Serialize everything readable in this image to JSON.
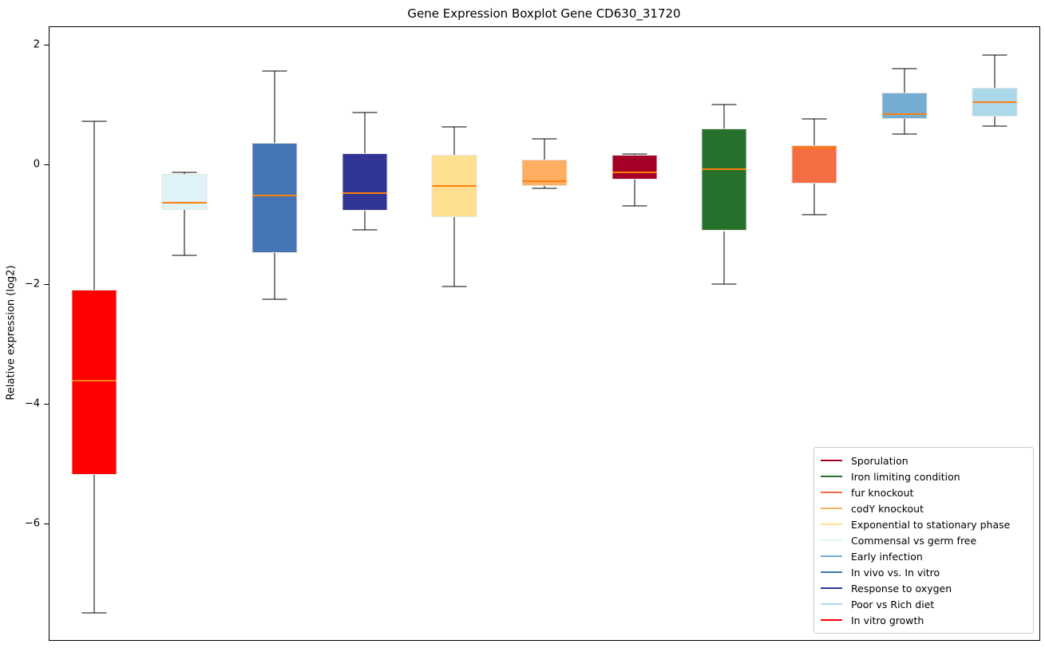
{
  "figure": {
    "title": "Gene Expression Boxplot Gene CD630_31720",
    "ylabel": "Relative expression (log2)"
  },
  "axes": {
    "yticks": [
      {
        "label": "2",
        "value": 2
      },
      {
        "label": "0",
        "value": 0
      },
      {
        "label": "−2",
        "value": -2
      },
      {
        "label": "−4",
        "value": -4
      },
      {
        "label": "−6",
        "value": -6
      }
    ]
  },
  "chart_data": {
    "type": "boxplot",
    "title": "Gene Expression Boxplot Gene CD630_31720",
    "xlabel": "",
    "ylabel": "Relative expression (log2)",
    "ylim": [
      -7.95,
      2.3
    ],
    "grid": false,
    "median_color": "#ff7f0e",
    "whisker_color": "#000000",
    "categories": [
      "In vitro growth",
      "Commensal vs germ free",
      "In vivo vs. In vitro",
      "Response to oxygen",
      "Exponential to stationary phase",
      "codY knockout",
      "Sporulation",
      "Iron limiting condition",
      "fur knockout",
      "Early infection",
      "Poor vs Rich diet"
    ],
    "series": [
      {
        "label": "In vitro growth",
        "color": "#ff0000",
        "whisker_low": -7.49,
        "q1": -5.19,
        "median": -3.61,
        "q3": -2.09,
        "whisker_high": 0.73
      },
      {
        "label": "Commensal vs germ free",
        "color": "#e0f3f8",
        "whisker_low": -1.52,
        "q1": -0.75,
        "median": -0.63,
        "q3": -0.16,
        "whisker_high": -0.13
      },
      {
        "label": "In vivo vs. In vitro",
        "color": "#4575b4",
        "whisker_low": -2.25,
        "q1": -1.48,
        "median": -0.51,
        "q3": 0.36,
        "whisker_high": 1.57
      },
      {
        "label": "Response to oxygen",
        "color": "#313695",
        "whisker_low": -1.09,
        "q1": -0.77,
        "median": -0.47,
        "q3": 0.19,
        "whisker_high": 0.87
      },
      {
        "label": "Exponential to stationary phase",
        "color": "#fee090",
        "whisker_low": -2.04,
        "q1": -0.87,
        "median": -0.36,
        "q3": 0.16,
        "whisker_high": 0.63
      },
      {
        "label": "codY knockout",
        "color": "#fdae61",
        "whisker_low": -0.4,
        "q1": -0.35,
        "median": -0.28,
        "q3": 0.08,
        "whisker_high": 0.43
      },
      {
        "label": "Sporulation",
        "color": "#a50026",
        "whisker_low": -0.69,
        "q1": -0.25,
        "median": -0.13,
        "q3": 0.17,
        "whisker_high": 0.18
      },
      {
        "label": "Iron limiting condition",
        "color": "#26702b",
        "whisker_low": -2.0,
        "q1": -1.11,
        "median": -0.08,
        "q3": 0.61,
        "whisker_high": 1.01
      },
      {
        "label": "fur knockout",
        "color": "#f46d43",
        "whisker_low": -0.84,
        "q1": -0.32,
        "median": 0.29,
        "q3": 0.33,
        "whisker_high": 0.76
      },
      {
        "label": "Early infection",
        "color": "#74add1",
        "whisker_low": 0.51,
        "q1": 0.76,
        "median": 0.84,
        "q3": 1.2,
        "whisker_high": 1.6
      },
      {
        "label": "Poor vs Rich diet",
        "color": "#abd9e9",
        "whisker_low": 0.65,
        "q1": 0.81,
        "median": 1.04,
        "q3": 1.29,
        "whisker_high": 1.83
      }
    ],
    "legend": {
      "position": "lower right",
      "entries": [
        {
          "label": "Sporulation",
          "color": "#a50026"
        },
        {
          "label": "Iron limiting condition",
          "color": "#26702b"
        },
        {
          "label": "fur knockout",
          "color": "#f46d43"
        },
        {
          "label": "codY knockout",
          "color": "#fdae61"
        },
        {
          "label": "Exponential to stationary phase",
          "color": "#fee090"
        },
        {
          "label": "Commensal vs germ free",
          "color": "#e0f3f8"
        },
        {
          "label": "Early infection",
          "color": "#74add1"
        },
        {
          "label": "In vivo vs. In vitro",
          "color": "#4575b4"
        },
        {
          "label": "Response to oxygen",
          "color": "#313695"
        },
        {
          "label": "Poor vs Rich diet",
          "color": "#abd9e9"
        },
        {
          "label": "In vitro growth",
          "color": "#ff0000"
        }
      ]
    }
  }
}
